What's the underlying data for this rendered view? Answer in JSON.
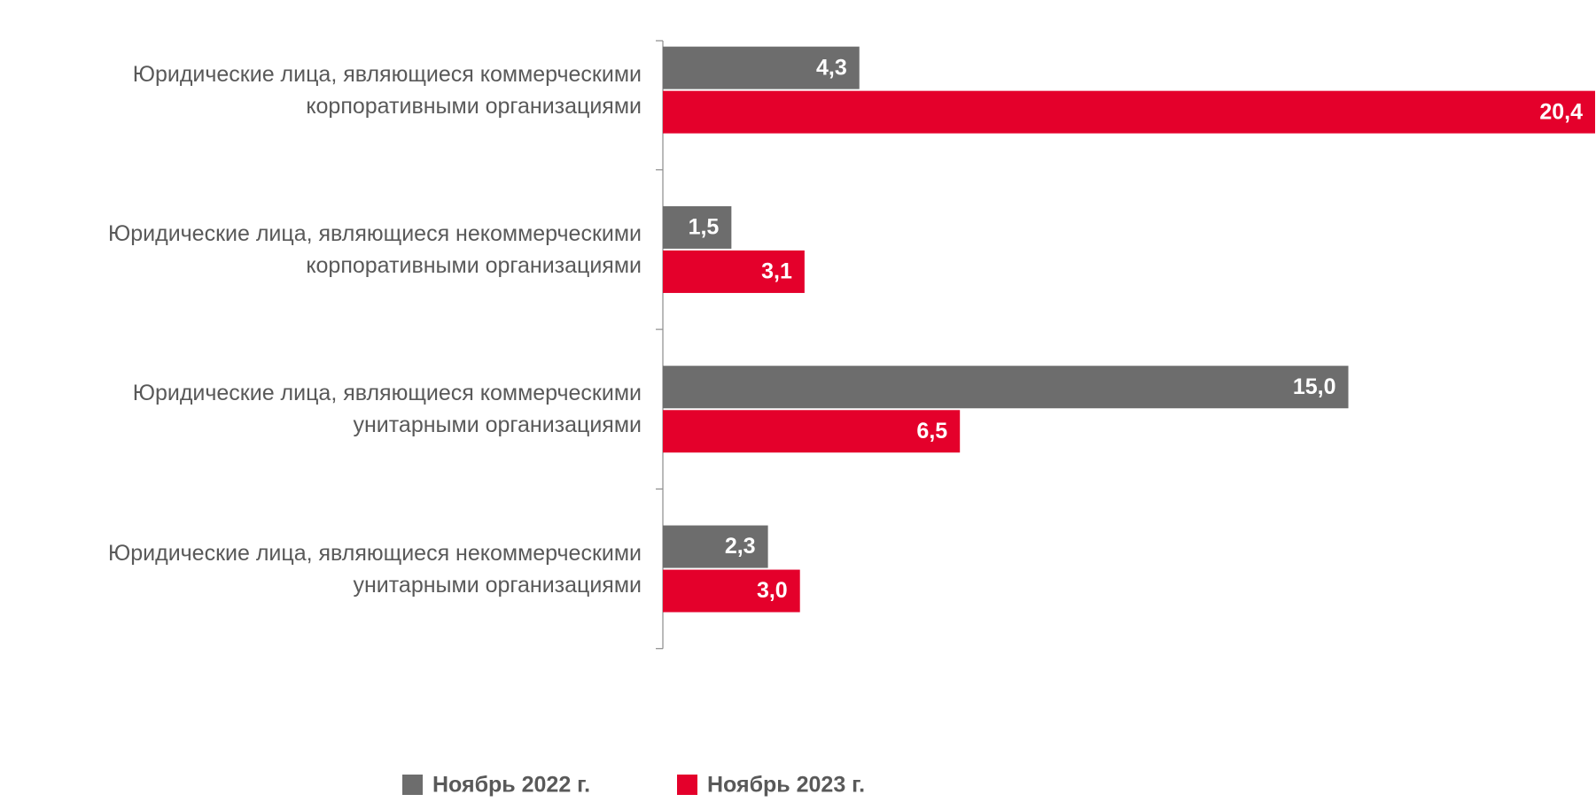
{
  "chart_data": {
    "type": "bar",
    "orientation": "horizontal",
    "categories": [
      "Юридические лица, являющиеся коммерческими\nкорпоративными организациями",
      "Юридические лица, являющиеся некоммерческими\nкорпоративными организациями",
      "Юридические лица, являющиеся коммерческими\nунитарными организациями",
      "Юридические лица, являющиеся некоммерческими\nунитарными организациями"
    ],
    "series": [
      {
        "name": "Ноябрь 2022 г.",
        "color": "#6d6d6d",
        "values": [
          4.3,
          1.5,
          15.0,
          2.3
        ],
        "value_labels": [
          "4,3",
          "1,5",
          "15,0",
          "2,3"
        ]
      },
      {
        "name": "Ноябрь 2023 г.",
        "color": "#e4002b",
        "values": [
          20.4,
          3.1,
          6.5,
          3.0
        ],
        "value_labels": [
          "20,4",
          "3,1",
          "6,5",
          "3,0"
        ]
      }
    ],
    "legend": "bottom"
  }
}
